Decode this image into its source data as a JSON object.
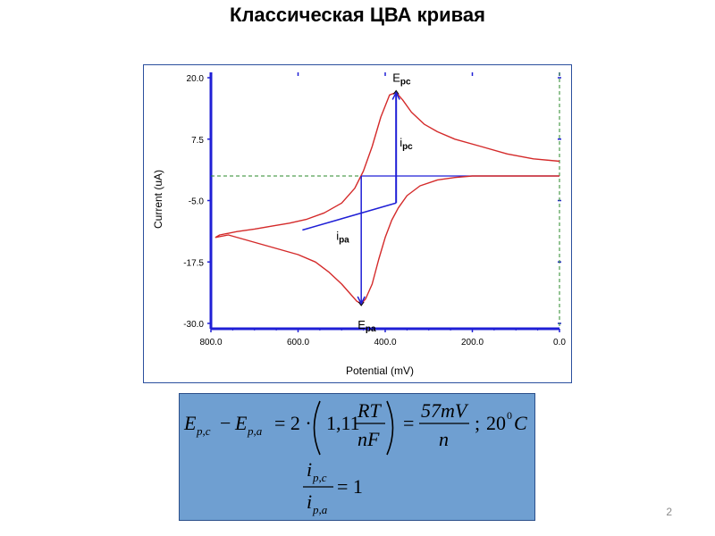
{
  "slide": {
    "title": "Классическая ЦВА кривая",
    "page_number": "2"
  },
  "chart_data": {
    "type": "line",
    "xlabel": "Potential (mV)",
    "ylabel": "Current (uA)",
    "xlim": [
      800,
      0
    ],
    "x_reversed": true,
    "ylim": [
      -30,
      20
    ],
    "xticks": [
      800,
      600,
      400,
      200,
      0
    ],
    "xtick_labels": [
      "800.0",
      "600.0",
      "400.0",
      "200.0",
      "0.0"
    ],
    "yticks": [
      20,
      7.5,
      -5,
      -17.5,
      -30
    ],
    "ytick_labels": [
      "20.0",
      "7.5",
      "-5.0",
      "-17.5",
      "-30.0"
    ],
    "grid": false,
    "series": [
      {
        "color": "#d42a2a",
        "x": [
          0,
          60,
          120,
          180,
          240,
          280,
          310,
          340,
          360,
          375,
          390,
          410,
          430,
          450,
          470,
          500,
          540,
          580,
          620,
          660,
          700,
          740,
          780,
          790
        ],
        "y": [
          3.0,
          3.5,
          4.5,
          6.0,
          7.5,
          9.0,
          10.5,
          13.0,
          15.5,
          17.0,
          16.5,
          12.0,
          6.0,
          1.0,
          -2.5,
          -5.5,
          -7.5,
          -8.8,
          -9.6,
          -10.2,
          -10.8,
          -11.3,
          -12.0,
          -12.5
        ]
      },
      {
        "color": "#d42a2a",
        "x": [
          790,
          760,
          720,
          680,
          640,
          600,
          560,
          530,
          500,
          480,
          465,
          455,
          445,
          430,
          415,
          400,
          385,
          370,
          350,
          320,
          280,
          240,
          200,
          150,
          100,
          50,
          0
        ],
        "y": [
          -12.5,
          -12.0,
          -13.0,
          -14.0,
          -15.0,
          -16.0,
          -17.5,
          -19.5,
          -22.0,
          -24.0,
          -25.5,
          -26.0,
          -25.0,
          -22.0,
          -17.0,
          -12.5,
          -9.0,
          -6.5,
          -4.0,
          -2.0,
          -0.8,
          -0.3,
          0.0,
          0.0,
          0.0,
          0.0,
          0.0
        ]
      }
    ],
    "baseline": {
      "color": "#1f1fd6",
      "x_start": 590,
      "y_start": -11.0,
      "x_end": 375,
      "y_end": -5.5
    },
    "guide_lines": {
      "color": "#2a8a2a",
      "style": "dashed",
      "horizontal_y": 0,
      "vertical_x": 0
    },
    "annotations": [
      {
        "label": "E",
        "sub": "pc",
        "x": 375,
        "y": 17
      },
      {
        "label": "i",
        "sub": "pc",
        "x": 375,
        "y": 6
      },
      {
        "label": "i",
        "sub": "pa",
        "x": 455,
        "y": -13
      },
      {
        "label": "E",
        "sub": "pa",
        "x": 455,
        "y": -26
      }
    ],
    "accent_color": "#1f1fd6"
  },
  "formula": {
    "line1_lhs": "E",
    "line1_sub1": "p,c",
    "minus": "−",
    "line1_e2": "E",
    "line1_sub2": "p,a",
    "eq1": "= 2 ·",
    "coef": "1,11",
    "frac1_num": "RT",
    "frac1_den": "nF",
    "eq2": "=",
    "frac2_num": "57mV",
    "frac2_den": "n",
    "temp_sep": ";",
    "temp_value": "20",
    "temp_sup": "0",
    "temp_unit": "C",
    "ratio_num": "i",
    "ratio_num_sub": "p,c",
    "ratio_den": "i",
    "ratio_den_sub": "p,a",
    "ratio_eq": "= 1"
  }
}
